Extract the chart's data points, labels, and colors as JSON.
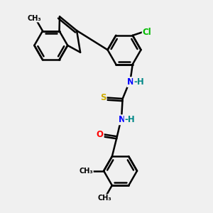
{
  "background_color": "#f0f0f0",
  "bond_color": "#000000",
  "bond_width": 1.8,
  "atom_colors": {
    "N": "#0000ff",
    "O": "#ff0000",
    "S": "#ccaa00",
    "Cl": "#00bb00",
    "H": "#008888",
    "C": "#000000"
  },
  "figsize": [
    3.0,
    3.0
  ],
  "dpi": 100,
  "xlim": [
    -0.5,
    8.5
  ],
  "ylim": [
    -1.0,
    8.5
  ]
}
